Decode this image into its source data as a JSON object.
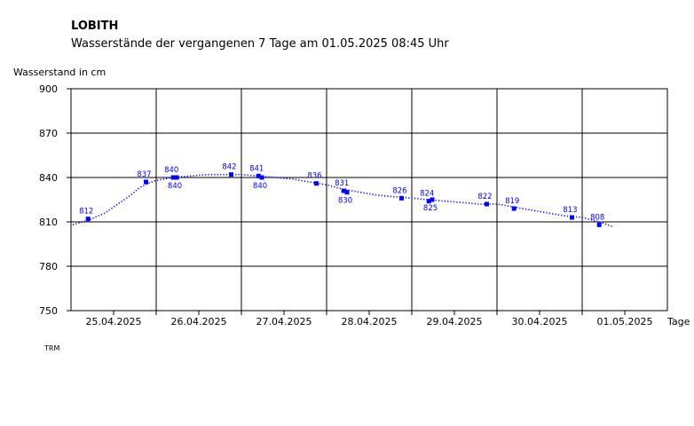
{
  "header": {
    "station": "LOBITH",
    "subtitle": "Wasserstände der vergangenen 7 Tage am 01.05.2025 08:45 Uhr",
    "footnote": "TRM"
  },
  "colors": {
    "series": "#0000ff",
    "grid": "#000000"
  },
  "chart_data": {
    "type": "line",
    "ylabel": "Wasserstand in cm",
    "xlabel": "Tage",
    "ylim": [
      750,
      900
    ],
    "yticks": [
      750,
      780,
      810,
      840,
      870,
      900
    ],
    "xlim": [
      0,
      7
    ],
    "days": [
      "25.04.2025",
      "26.04.2025",
      "27.04.2025",
      "28.04.2025",
      "29.04.2025",
      "30.04.2025",
      "01.05.2025"
    ],
    "grid": true,
    "series": [
      {
        "style": "dotted",
        "x": [
          0.02,
          0.2,
          0.4,
          0.5,
          0.6,
          0.7,
          0.8,
          0.9,
          1.0,
          1.2,
          1.4,
          1.6,
          1.8,
          2.0,
          2.2,
          2.4,
          2.6,
          2.8,
          3.0,
          3.2,
          3.4,
          3.6,
          3.8,
          4.0,
          4.2,
          4.4,
          4.6,
          4.8,
          5.0,
          5.2,
          5.4,
          5.6,
          5.8,
          6.0,
          6.2,
          6.35
        ],
        "values": [
          808,
          811,
          816,
          820,
          824,
          828,
          833,
          836,
          838,
          840,
          841,
          842,
          842,
          842,
          841,
          840,
          839,
          837,
          835,
          832,
          830,
          828,
          827,
          826,
          825,
          824,
          823,
          822,
          822,
          820,
          818,
          816,
          814,
          813,
          810,
          807
        ]
      }
    ],
    "points": [
      {
        "x": 0.2,
        "value": 812,
        "label": "812",
        "pos": "above"
      },
      {
        "x": 0.88,
        "value": 837,
        "label": "837",
        "pos": "above"
      },
      {
        "x": 1.2,
        "value": 840,
        "label": "840",
        "pos": "above"
      },
      {
        "x": 1.24,
        "value": 840,
        "label": "840",
        "pos": "below"
      },
      {
        "x": 1.88,
        "value": 842,
        "label": "842",
        "pos": "above"
      },
      {
        "x": 2.2,
        "value": 841,
        "label": "841",
        "pos": "above"
      },
      {
        "x": 2.24,
        "value": 840,
        "label": "840",
        "pos": "below"
      },
      {
        "x": 2.88,
        "value": 836,
        "label": "836",
        "pos": "above"
      },
      {
        "x": 3.2,
        "value": 831,
        "label": "831",
        "pos": "above"
      },
      {
        "x": 3.24,
        "value": 830,
        "label": "830",
        "pos": "below"
      },
      {
        "x": 3.88,
        "value": 826,
        "label": "826",
        "pos": "above"
      },
      {
        "x": 4.2,
        "value": 824,
        "label": "824",
        "pos": "above"
      },
      {
        "x": 4.24,
        "value": 825,
        "label": "825",
        "pos": "below"
      },
      {
        "x": 4.88,
        "value": 822,
        "label": "822",
        "pos": "above"
      },
      {
        "x": 5.2,
        "value": 819,
        "label": "819",
        "pos": "above"
      },
      {
        "x": 5.88,
        "value": 813,
        "label": "813",
        "pos": "above"
      },
      {
        "x": 6.2,
        "value": 808,
        "label": "808",
        "pos": "above"
      }
    ]
  }
}
